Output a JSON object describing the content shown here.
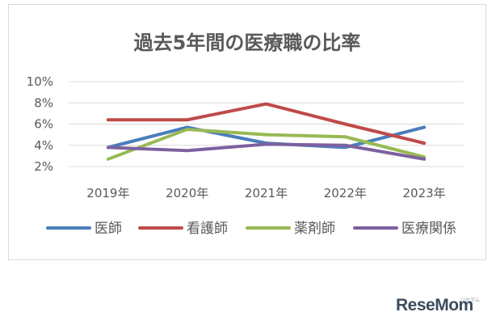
{
  "chart_data": {
    "type": "line",
    "title": "過去5年間の医療職の比率",
    "categories": [
      "2019年",
      "2020年",
      "2021年",
      "2022年",
      "2023年"
    ],
    "y_ticks": [
      "2%",
      "4%",
      "6%",
      "8%",
      "10%"
    ],
    "ylim": [
      2,
      10
    ],
    "grid": true,
    "legend_position": "bottom",
    "series": [
      {
        "name": "医師",
        "color": "#4a7ebb",
        "values": [
          3.8,
          5.7,
          4.2,
          3.8,
          5.7
        ]
      },
      {
        "name": "看護師",
        "color": "#be4b48",
        "values": [
          6.4,
          6.4,
          7.9,
          6.0,
          4.2
        ]
      },
      {
        "name": "薬剤師",
        "color": "#98b954",
        "values": [
          2.7,
          5.5,
          5.0,
          4.8,
          2.9
        ]
      },
      {
        "name": "医療関係",
        "color": "#7d60a0",
        "values": [
          3.8,
          3.5,
          4.1,
          4.0,
          2.7
        ]
      }
    ]
  },
  "watermark": {
    "text": "ReseMom",
    "sub": "リセマム"
  }
}
